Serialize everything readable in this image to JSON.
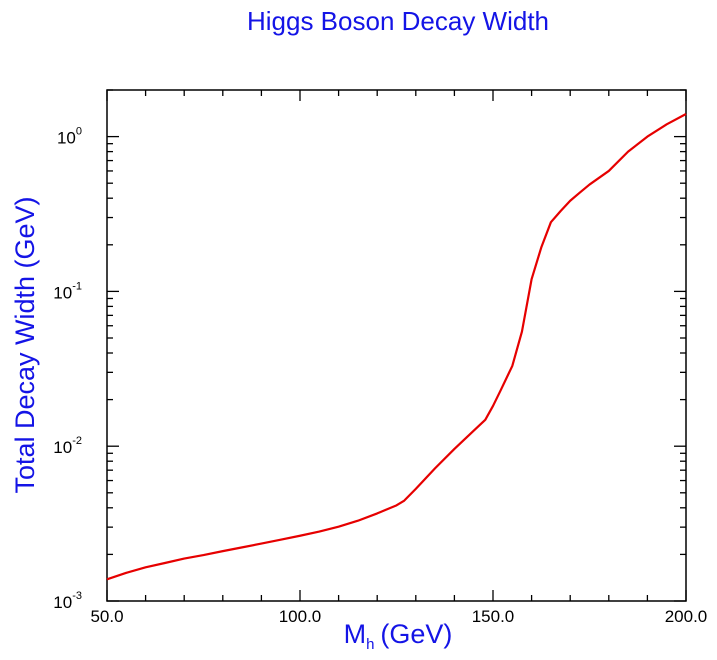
{
  "chart_data": {
    "type": "line",
    "title": "Higgs Boson Decay Width",
    "xlabel": {
      "main": "M",
      "sub": "h",
      "unit": "(GeV)"
    },
    "ylabel": "Total Decay Width (GeV)",
    "xlim": [
      50,
      200
    ],
    "ylim": [
      0.001,
      2
    ],
    "y_scale": "log",
    "x_ticks": [
      {
        "value": 50,
        "label": "50.0"
      },
      {
        "value": 100,
        "label": "100.0"
      },
      {
        "value": 150,
        "label": "150.0"
      },
      {
        "value": 200,
        "label": "200.0"
      }
    ],
    "y_ticks": [
      {
        "value": 0.001,
        "base": "10",
        "exp": "-3"
      },
      {
        "value": 0.01,
        "base": "10",
        "exp": "-2"
      },
      {
        "value": 0.1,
        "base": "10",
        "exp": "-1"
      },
      {
        "value": 1,
        "base": "10",
        "exp": "0"
      }
    ],
    "grid": false,
    "colors": {
      "title": "#1414e6",
      "axis_labels": "#1414e6",
      "line": "#e60000",
      "frame": "#000000"
    },
    "series": [
      {
        "x": [
          50,
          55,
          60,
          65,
          70,
          75,
          80,
          85,
          90,
          95,
          100,
          105,
          110,
          115,
          120,
          125,
          127,
          130,
          135,
          140,
          145,
          148,
          150,
          152,
          155,
          157.5,
          160,
          162.5,
          165,
          167.5,
          170,
          172.5,
          175,
          180,
          185,
          190,
          195,
          200
        ],
        "y": [
          0.00138,
          0.00152,
          0.00165,
          0.00176,
          0.00188,
          0.00198,
          0.0021,
          0.00222,
          0.00235,
          0.00249,
          0.00264,
          0.00281,
          0.00302,
          0.0033,
          0.00368,
          0.00415,
          0.00445,
          0.0053,
          0.0072,
          0.0096,
          0.0126,
          0.0148,
          0.0182,
          0.023,
          0.033,
          0.055,
          0.12,
          0.192,
          0.28,
          0.33,
          0.385,
          0.435,
          0.49,
          0.6,
          0.8,
          1.0,
          1.2,
          1.4
        ]
      }
    ]
  }
}
